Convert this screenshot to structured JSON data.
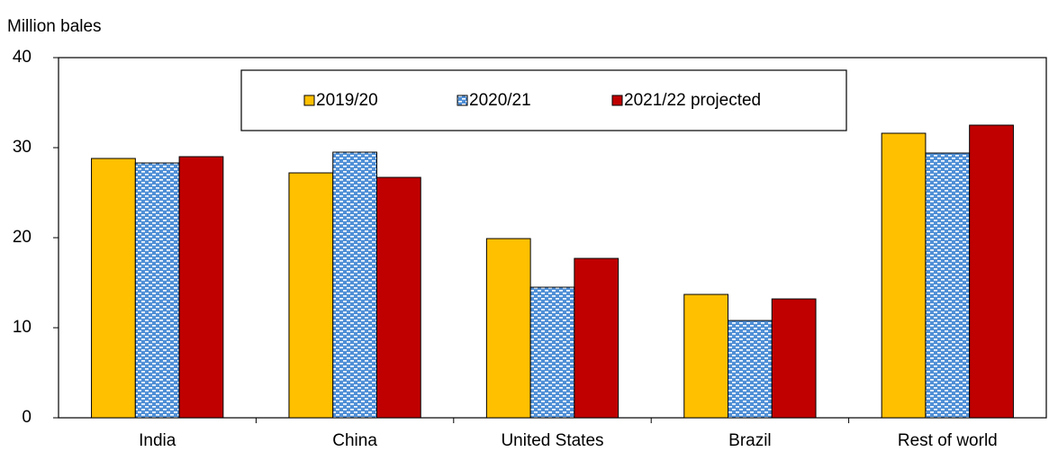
{
  "chart_data": {
    "type": "bar",
    "y_label": "Million bales",
    "categories": [
      "India",
      "China",
      "United States",
      "Brazil",
      "Rest of world"
    ],
    "series": [
      {
        "name": "2019/20",
        "color": "#ffc000",
        "values": [
          28.8,
          27.2,
          19.9,
          13.7,
          31.6
        ]
      },
      {
        "name": "2020/21",
        "color": "#4f8fd6",
        "pattern": "dashes",
        "values": [
          28.3,
          29.5,
          14.5,
          10.8,
          29.4
        ]
      },
      {
        "name": "2021/22 projected",
        "color": "#c00000",
        "values": [
          29.0,
          26.7,
          17.7,
          13.2,
          32.5
        ]
      }
    ],
    "ylim": [
      0,
      40
    ],
    "yticks": [
      0,
      10,
      20,
      30,
      40
    ],
    "grid": false
  }
}
